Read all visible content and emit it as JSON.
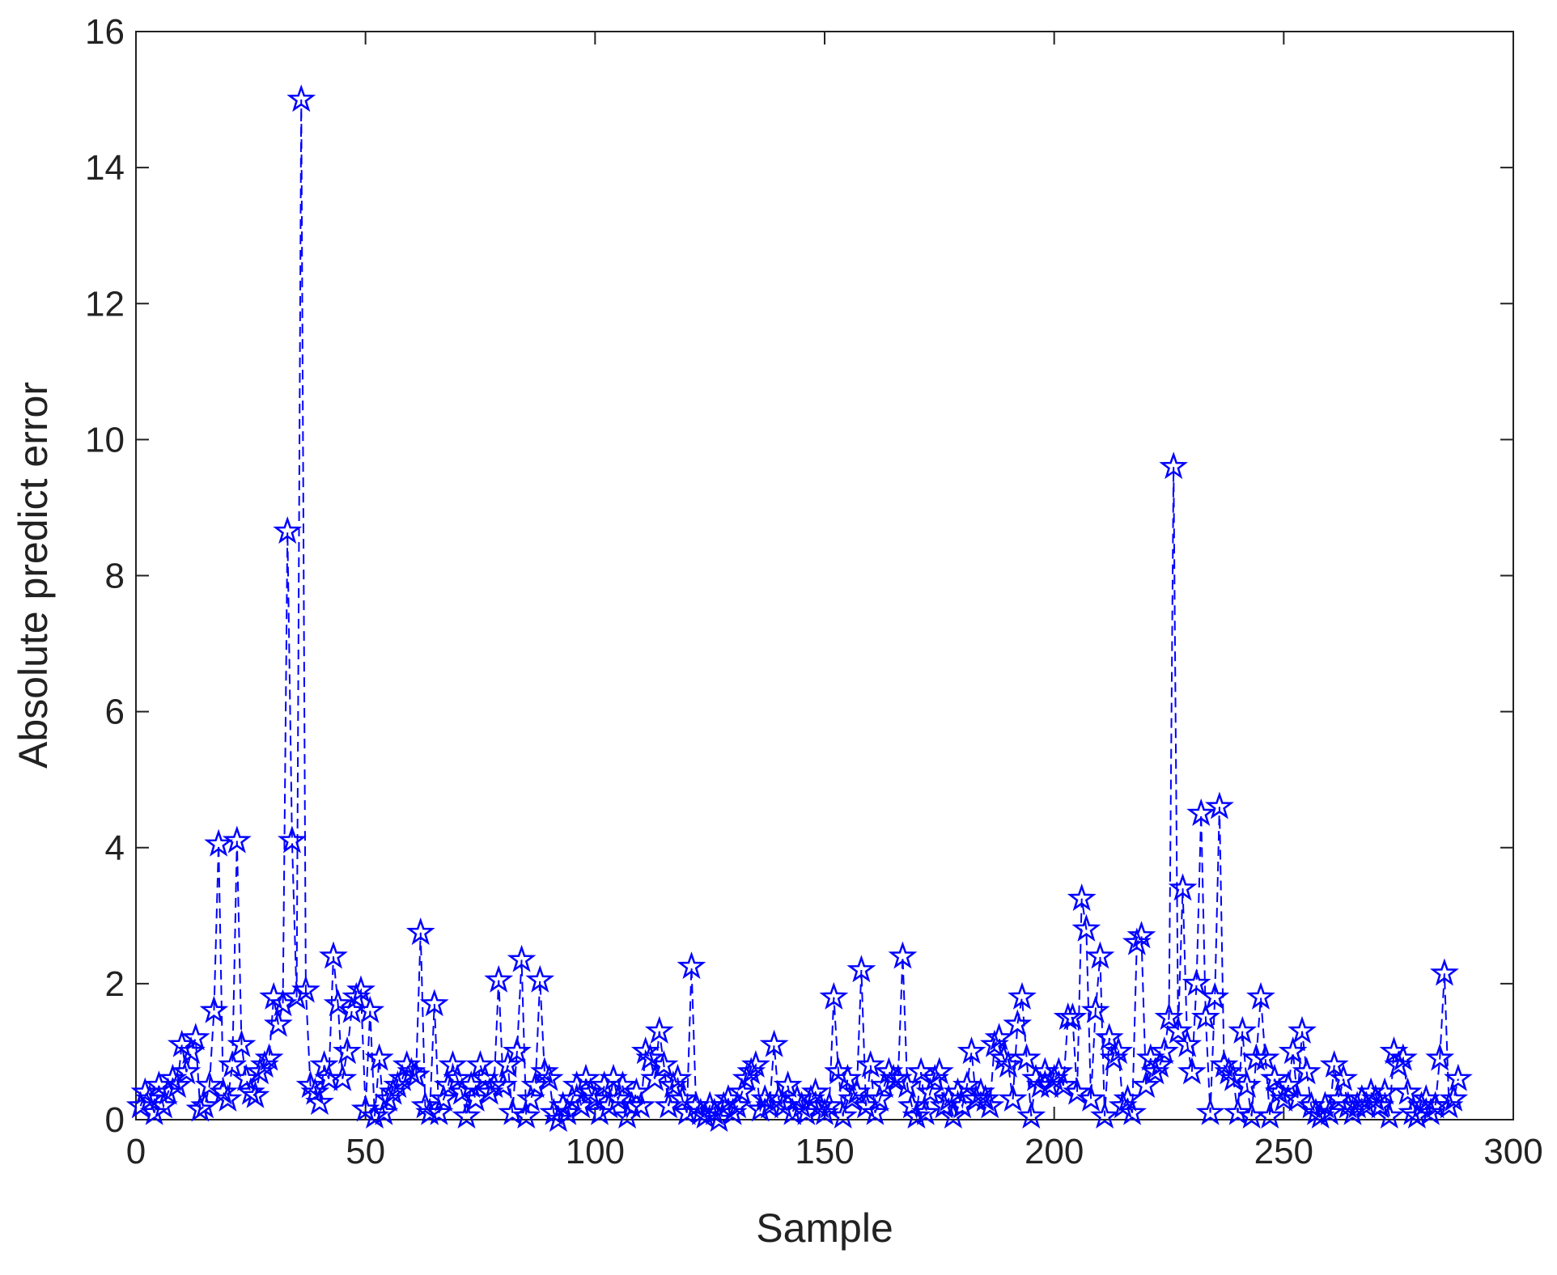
{
  "chart_data": {
    "type": "line",
    "xlabel": "Sample",
    "ylabel": "Absolute predict error",
    "xlim": [
      0,
      300
    ],
    "xticks": [
      0,
      50,
      100,
      150,
      200,
      250,
      300
    ],
    "ylim": [
      0,
      16
    ],
    "yticks": [
      0,
      2,
      4,
      6,
      8,
      10,
      12,
      14,
      16
    ],
    "series": [
      {
        "color": "#0000ff",
        "linestyle": "dashed",
        "marker": "star",
        "x": [
          1,
          2,
          3,
          4,
          5,
          6,
          7,
          8,
          9,
          10,
          11,
          12,
          13,
          14,
          15,
          16,
          17,
          18,
          19,
          20,
          21,
          22,
          23,
          24,
          25,
          26,
          27,
          28,
          29,
          30,
          31,
          32,
          33,
          34,
          35,
          36,
          37,
          38,
          39,
          40,
          41,
          42,
          43,
          44,
          45,
          46,
          47,
          48,
          49,
          50,
          51,
          52,
          53,
          54,
          55,
          56,
          57,
          58,
          59,
          60,
          61,
          62,
          63,
          64,
          65,
          66,
          67,
          68,
          69,
          70,
          71,
          72,
          73,
          74,
          75,
          76,
          77,
          78,
          79,
          80,
          81,
          82,
          83,
          84,
          85,
          86,
          87,
          88,
          89,
          90,
          91,
          92,
          93,
          94,
          95,
          96,
          97,
          98,
          99,
          100,
          101,
          102,
          103,
          104,
          105,
          106,
          107,
          108,
          109,
          110,
          111,
          112,
          113,
          114,
          115,
          116,
          117,
          118,
          119,
          120,
          121,
          122,
          123,
          124,
          125,
          126,
          127,
          128,
          129,
          130,
          131,
          132,
          133,
          134,
          135,
          136,
          137,
          138,
          139,
          140,
          141,
          142,
          143,
          144,
          145,
          146,
          147,
          148,
          149,
          150,
          151,
          152,
          153,
          154,
          155,
          156,
          157,
          158,
          159,
          160,
          161,
          162,
          163,
          164,
          165,
          166,
          167,
          168,
          169,
          170,
          171,
          172,
          173,
          174,
          175,
          176,
          177,
          178,
          179,
          180,
          181,
          182,
          183,
          184,
          185,
          186,
          187,
          188,
          189,
          190,
          191,
          192,
          193,
          194,
          195,
          196,
          197,
          198,
          199,
          200,
          201,
          202,
          203,
          204,
          205,
          206,
          207,
          208,
          209,
          210,
          211,
          212,
          213,
          214,
          215,
          216,
          217,
          218,
          219,
          220,
          221,
          222,
          223,
          224,
          225,
          226,
          227,
          228,
          229,
          230,
          231,
          232,
          233,
          234,
          235,
          236,
          237,
          238,
          239,
          240,
          241,
          242,
          243,
          244,
          245,
          246,
          247,
          248,
          249,
          250,
          251,
          252,
          253,
          254,
          255,
          256,
          257,
          258,
          259,
          260,
          261,
          262,
          263,
          264,
          265,
          266,
          267,
          268,
          269,
          270,
          271,
          272,
          273,
          274,
          275,
          276,
          277,
          278,
          279,
          280,
          281,
          282,
          283,
          284,
          285,
          286,
          287,
          288
        ],
        "values": [
          0.2,
          0.4,
          0.3,
          0.1,
          0.5,
          0.2,
          0.4,
          0.6,
          0.5,
          1.1,
          0.7,
          1.0,
          1.2,
          0.15,
          0.2,
          0.5,
          1.6,
          4.05,
          0.4,
          0.3,
          0.8,
          4.1,
          1.1,
          0.6,
          0.4,
          0.35,
          0.7,
          0.8,
          0.9,
          1.8,
          1.4,
          1.7,
          8.65,
          4.1,
          1.8,
          15.0,
          1.9,
          0.5,
          0.4,
          0.25,
          0.8,
          0.6,
          2.4,
          1.7,
          0.6,
          1.0,
          1.6,
          1.8,
          1.9,
          0.15,
          1.6,
          0.05,
          0.9,
          0.1,
          0.3,
          0.4,
          0.5,
          0.6,
          0.8,
          0.7,
          0.65,
          2.75,
          0.2,
          0.1,
          1.7,
          0.1,
          0.3,
          0.5,
          0.8,
          0.6,
          0.4,
          0.05,
          0.5,
          0.3,
          0.8,
          0.6,
          0.4,
          0.5,
          2.05,
          0.5,
          0.8,
          0.1,
          1.0,
          2.35,
          0.05,
          0.3,
          0.5,
          2.05,
          0.7,
          0.6,
          0.1,
          0.0,
          0.2,
          0.1,
          0.3,
          0.5,
          0.2,
          0.6,
          0.4,
          0.3,
          0.1,
          0.5,
          0.2,
          0.6,
          0.3,
          0.5,
          0.05,
          0.2,
          0.4,
          0.2,
          1.0,
          0.9,
          0.6,
          1.3,
          0.8,
          0.2,
          0.5,
          0.6,
          0.3,
          0.1,
          2.25,
          0.2,
          0.1,
          0.05,
          0.2,
          0.1,
          0.0,
          0.2,
          0.3,
          0.1,
          0.2,
          0.4,
          0.6,
          0.7,
          0.8,
          0.15,
          0.3,
          0.2,
          1.1,
          0.3,
          0.2,
          0.5,
          0.1,
          0.3,
          0.2,
          0.1,
          0.3,
          0.4,
          0.2,
          0.1,
          0.2,
          1.8,
          0.7,
          0.05,
          0.6,
          0.3,
          0.4,
          2.2,
          0.2,
          0.8,
          0.1,
          0.3,
          0.5,
          0.7,
          0.6,
          0.6,
          2.4,
          0.5,
          0.2,
          0.05,
          0.7,
          0.1,
          0.4,
          0.6,
          0.7,
          0.2,
          0.3,
          0.05,
          0.4,
          0.2,
          0.5,
          1.0,
          0.3,
          0.4,
          0.3,
          0.2,
          1.1,
          1.2,
          0.9,
          0.8,
          0.3,
          1.4,
          1.8,
          0.9,
          0.05,
          0.6,
          0.5,
          0.7,
          0.5,
          0.6,
          0.7,
          0.5,
          1.5,
          1.5,
          0.4,
          3.25,
          2.8,
          0.3,
          1.6,
          2.4,
          0.05,
          1.2,
          0.9,
          1.0,
          0.2,
          0.3,
          0.1,
          2.6,
          2.7,
          0.5,
          0.9,
          0.7,
          0.8,
          1.0,
          1.5,
          9.6,
          1.3,
          3.4,
          1.1,
          0.7,
          2.0,
          4.5,
          1.5,
          0.1,
          1.8,
          4.6,
          0.8,
          0.7,
          0.6,
          0.1,
          1.3,
          0.5,
          0.05,
          0.9,
          1.8,
          0.9,
          0.05,
          0.6,
          0.4,
          0.3,
          0.5,
          1.0,
          0.3,
          1.3,
          0.7,
          0.2,
          0.1,
          0.05,
          0.2,
          0.1,
          0.8,
          0.3,
          0.6,
          0.2,
          0.1,
          0.2,
          0.3,
          0.2,
          0.4,
          0.3,
          0.2,
          0.4,
          0.05,
          1.0,
          0.8,
          0.9,
          0.4,
          0.1,
          0.05,
          0.2,
          0.3,
          0.1,
          0.2,
          0.9,
          2.15,
          0.2,
          0.3,
          0.6
        ]
      }
    ]
  }
}
